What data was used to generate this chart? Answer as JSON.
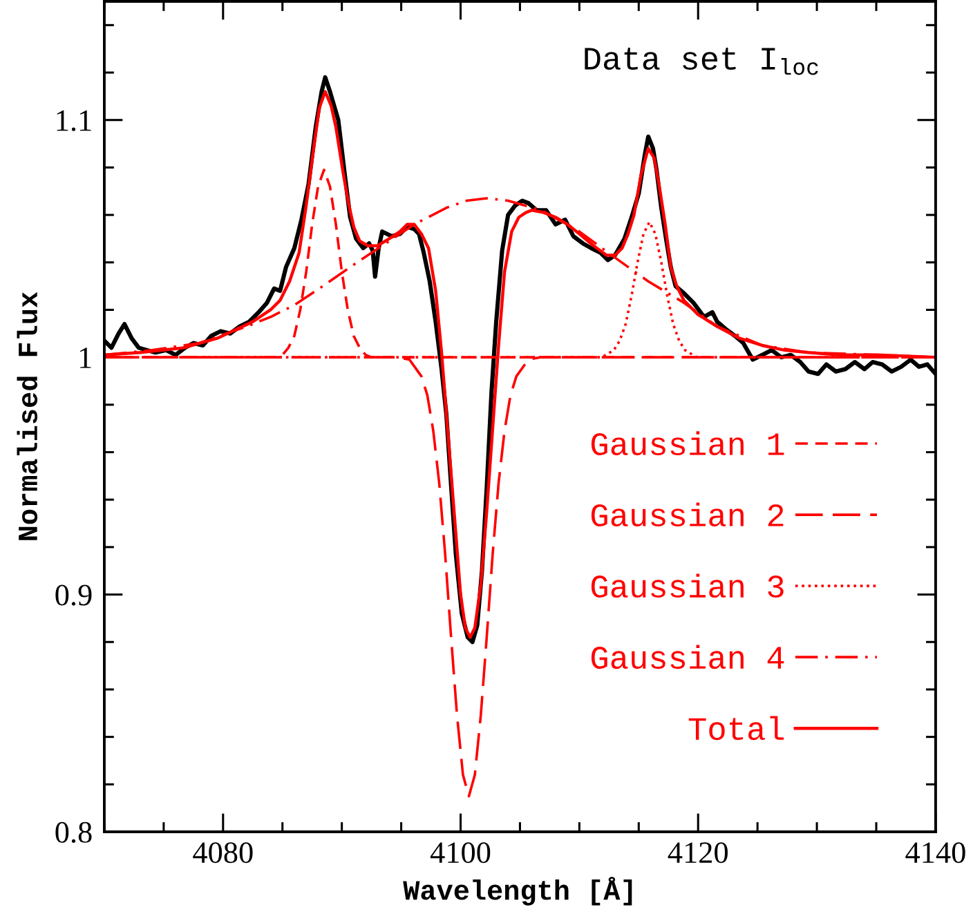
{
  "chart_data": {
    "type": "line",
    "title": "Data set I$_{loc}$",
    "xlabel": "Wavelength [Å]",
    "ylabel": "Normalised Flux",
    "xlim": [
      4070,
      4140
    ],
    "ylim": [
      0.8,
      1.15
    ],
    "xticks": [
      4080,
      4100,
      4120,
      4140
    ],
    "yticks": [
      0.8,
      0.9,
      1,
      1.1
    ],
    "legend": "bottom right",
    "series": [
      {
        "color": "#000000",
        "line_style": "solid",
        "x": [
          4070.0,
          4070.6,
          4071.2,
          4071.7,
          4072.3,
          4072.9,
          4073.6,
          4074.3,
          4075.2,
          4076.0,
          4076.8,
          4077.5,
          4078.3,
          4079.0,
          4079.8,
          4080.6,
          4081.4,
          4082.2,
          4083.0,
          4083.7,
          4084.3,
          4084.8,
          4085.3,
          4086.0,
          4086.6,
          4087.2,
          4087.8,
          4088.3,
          4088.6,
          4089.0,
          4089.7,
          4090.2,
          4090.7,
          4091.2,
          4091.8,
          4092.3,
          4092.6,
          4092.8,
          4093.1,
          4093.4,
          4094.2,
          4094.9,
          4095.5,
          4096.1,
          4096.5,
          4096.9,
          4097.4,
          4097.9,
          4098.4,
          4098.8,
          4099.2,
          4099.6,
          4100.1,
          4100.6,
          4101.0,
          4101.4,
          4101.8,
          4102.2,
          4102.6,
          4103.0,
          4103.5,
          4104.0,
          4104.6,
          4105.2,
          4105.7,
          4106.4,
          4107.2,
          4108.0,
          4108.8,
          4109.5,
          4110.3,
          4111.0,
          4111.8,
          4112.4,
          4113.0,
          4113.8,
          4114.4,
          4115.0,
          4115.5,
          4115.8,
          4116.2,
          4116.5,
          4116.9,
          4117.3,
          4117.7,
          4118.1,
          4118.8,
          4119.6,
          4120.5,
          4121.2,
          4121.6,
          4122.3,
          4123.1,
          4123.8,
          4124.6,
          4125.4,
          4126.2,
          4127.0,
          4127.8,
          4128.6,
          4129.3,
          4130.1,
          4130.8,
          4131.6,
          4132.4,
          4133.2,
          4134.0,
          4134.7,
          4135.5,
          4136.3,
          4137.1,
          4137.9,
          4138.6,
          4139.3,
          4140.0
        ],
        "values": [
          1.007,
          1.004,
          1.01,
          1.014,
          1.008,
          1.004,
          1.003,
          1.002,
          1.003,
          1.001,
          1.004,
          1.006,
          1.005,
          1.009,
          1.011,
          1.01,
          1.013,
          1.015,
          1.019,
          1.023,
          1.029,
          1.028,
          1.038,
          1.046,
          1.058,
          1.073,
          1.097,
          1.112,
          1.118,
          1.112,
          1.1,
          1.079,
          1.059,
          1.05,
          1.046,
          1.048,
          1.045,
          1.034,
          1.046,
          1.053,
          1.051,
          1.052,
          1.055,
          1.054,
          1.052,
          1.044,
          1.032,
          1.015,
          0.995,
          0.976,
          0.946,
          0.917,
          0.892,
          0.882,
          0.88,
          0.887,
          0.91,
          0.945,
          0.985,
          1.015,
          1.045,
          1.06,
          1.064,
          1.066,
          1.065,
          1.062,
          1.062,
          1.056,
          1.058,
          1.051,
          1.048,
          1.046,
          1.044,
          1.041,
          1.043,
          1.05,
          1.059,
          1.069,
          1.085,
          1.093,
          1.088,
          1.079,
          1.063,
          1.05,
          1.038,
          1.03,
          1.027,
          1.023,
          1.017,
          1.019,
          1.015,
          1.012,
          1.009,
          1.006,
          0.999,
          1.001,
          1.003,
          1.0,
          1.001,
          0.998,
          0.994,
          0.993,
          0.997,
          0.994,
          0.995,
          0.998,
          0.995,
          0.998,
          0.997,
          0.994,
          0.996,
          0.999,
          0.996,
          0.997,
          0.993
        ]
      },
      {
        "name": "Gaussian 1",
        "color": "#ff0000",
        "line_style": "dashed",
        "x": [
          4070.0,
          4084.5,
          4085.0,
          4085.5,
          4086.0,
          4086.5,
          4087.0,
          4087.5,
          4088.0,
          4088.5,
          4089.0,
          4089.5,
          4090.0,
          4090.5,
          4091.0,
          4091.5,
          4092.0,
          4092.5,
          4140.0
        ],
        "values": [
          1.0,
          1.0,
          1.001,
          1.004,
          1.009,
          1.02,
          1.036,
          1.056,
          1.072,
          1.079,
          1.072,
          1.056,
          1.036,
          1.02,
          1.009,
          1.004,
          1.001,
          1.0,
          1.0
        ]
      },
      {
        "name": "Gaussian 2",
        "color": "#ff0000",
        "line_style": "longdash",
        "x": [
          4070.0,
          4094.7,
          4095.7,
          4096.7,
          4097.2,
          4097.7,
          4098.2,
          4098.7,
          4099.2,
          4099.7,
          4100.2,
          4100.7,
          4101.2,
          4101.7,
          4102.2,
          4102.7,
          4103.2,
          4103.7,
          4104.2,
          4104.7,
          4105.7,
          4106.7,
          4140.0
        ],
        "values": [
          1.0,
          1.0,
          0.999,
          0.992,
          0.984,
          0.969,
          0.947,
          0.917,
          0.882,
          0.849,
          0.824,
          0.815,
          0.824,
          0.849,
          0.882,
          0.917,
          0.947,
          0.969,
          0.984,
          0.992,
          0.999,
          1.0,
          1.0
        ]
      },
      {
        "name": "Gaussian 3",
        "color": "#ff0000",
        "line_style": "dotted",
        "x": [
          4070.0,
          4111.9,
          4112.9,
          4113.4,
          4113.9,
          4114.4,
          4114.9,
          4115.4,
          4115.9,
          4116.4,
          4116.9,
          4117.4,
          4117.9,
          4118.4,
          4118.9,
          4119.9,
          4140.0
        ],
        "values": [
          1.0,
          1.0,
          1.003,
          1.007,
          1.014,
          1.026,
          1.04,
          1.052,
          1.057,
          1.052,
          1.04,
          1.026,
          1.014,
          1.007,
          1.003,
          1.0,
          1.0
        ]
      },
      {
        "name": "Gaussian 4",
        "color": "#ff0000",
        "line_style": "dashdot",
        "x": [
          4070.0,
          4074.0,
          4078.0,
          4082.0,
          4084.0,
          4086.0,
          4088.4,
          4091.0,
          4093.4,
          4096.1,
          4098.8,
          4100.5,
          4102.2,
          4104.0,
          4106.8,
          4110.0,
          4113.0,
          4115.8,
          4118.8,
          4121.6,
          4125.4,
          4129.3,
          4135.1,
          4140.0
        ],
        "values": [
          1.001,
          1.003,
          1.006,
          1.013,
          1.017,
          1.022,
          1.03,
          1.039,
          1.047,
          1.056,
          1.063,
          1.066,
          1.067,
          1.066,
          1.062,
          1.053,
          1.042,
          1.032,
          1.023,
          1.013,
          1.005,
          1.002,
          1.001,
          1.0
        ]
      },
      {
        "name": "Total",
        "color": "#ff0000",
        "line_style": "solid",
        "x": [
          4070.0,
          4073.0,
          4076.7,
          4079.5,
          4082.5,
          4084.0,
          4084.8,
          4085.6,
          4086.4,
          4087.0,
          4087.6,
          4088.1,
          4088.6,
          4089.1,
          4089.5,
          4090.1,
          4090.6,
          4091.0,
          4091.5,
          4092.2,
          4093.0,
          4094.0,
          4094.9,
          4095.5,
          4096.1,
          4096.7,
          4097.3,
          4097.9,
          4098.4,
          4098.9,
          4099.5,
          4100.0,
          4100.4,
          4100.8,
          4101.2,
          4101.7,
          4102.2,
          4102.7,
          4103.2,
          4103.7,
          4104.3,
          4104.9,
          4105.5,
          4106.0,
          4107.0,
          4108.0,
          4109.0,
          4110.0,
          4111.2,
          4112.3,
          4113.0,
          4113.6,
          4114.1,
          4114.6,
          4115.2,
          4115.8,
          4116.3,
          4116.7,
          4117.2,
          4117.7,
          4118.2,
          4118.8,
          4120.0,
          4121.6,
          4123.5,
          4125.4,
          4127.3,
          4129.3,
          4132.0,
          4135.1,
          4140.0
        ],
        "values": [
          1.001,
          1.002,
          1.004,
          1.008,
          1.015,
          1.02,
          1.024,
          1.032,
          1.044,
          1.064,
          1.087,
          1.105,
          1.112,
          1.106,
          1.097,
          1.078,
          1.064,
          1.055,
          1.049,
          1.047,
          1.047,
          1.05,
          1.053,
          1.056,
          1.056,
          1.052,
          1.046,
          1.028,
          1.002,
          0.97,
          0.932,
          0.9,
          0.886,
          0.882,
          0.886,
          0.904,
          0.935,
          0.97,
          1.005,
          1.036,
          1.053,
          1.059,
          1.061,
          1.062,
          1.061,
          1.059,
          1.056,
          1.052,
          1.047,
          1.043,
          1.043,
          1.046,
          1.052,
          1.06,
          1.077,
          1.088,
          1.084,
          1.073,
          1.057,
          1.038,
          1.03,
          1.024,
          1.018,
          1.013,
          1.008,
          1.005,
          1.003,
          1.002,
          1.001,
          1.001,
          1.0
        ]
      }
    ]
  }
}
